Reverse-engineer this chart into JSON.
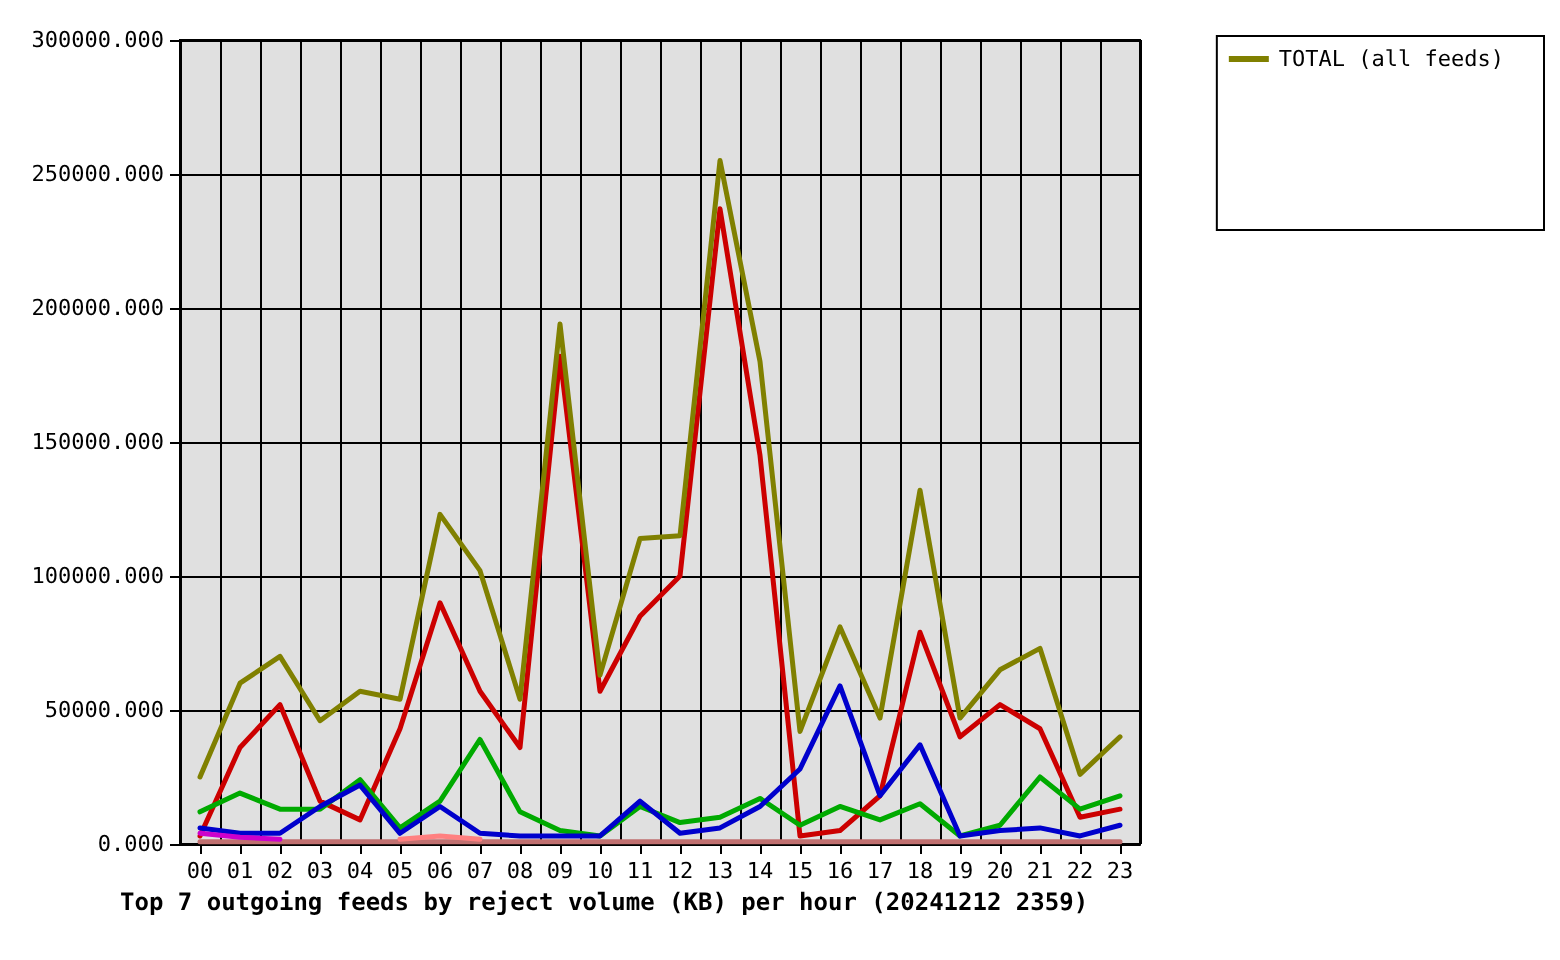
{
  "chart_data": {
    "type": "line",
    "title": "Top 7 outgoing feeds by reject volume (KB) per hour (20241212 2359)",
    "categories": [
      "00",
      "01",
      "02",
      "03",
      "04",
      "05",
      "06",
      "07",
      "08",
      "09",
      "10",
      "11",
      "12",
      "13",
      "14",
      "15",
      "16",
      "17",
      "18",
      "19",
      "20",
      "21",
      "22",
      "23"
    ],
    "series": [
      {
        "color": "#c07070",
        "values": [
          800,
          800,
          800,
          800,
          800,
          800,
          800,
          800,
          800,
          800,
          800,
          800,
          800,
          800,
          800,
          800,
          800,
          800,
          800,
          800,
          800,
          800,
          800,
          800
        ]
      },
      {
        "color": "#cc0000",
        "values": [
          3000,
          36000,
          52000,
          16000,
          9000,
          43000,
          90000,
          57000,
          36000,
          182000,
          57000,
          85000,
          100000,
          237000,
          145000,
          3000,
          5000,
          18000,
          79000,
          40000,
          52000,
          43000,
          10000,
          13000
        ]
      },
      {
        "color": "#00aa00",
        "values": [
          12000,
          19000,
          13000,
          13000,
          24000,
          6000,
          16000,
          39000,
          12000,
          5000,
          3000,
          14000,
          8000,
          10000,
          17000,
          7000,
          14000,
          9000,
          15000,
          3000,
          7000,
          25000,
          13000,
          18000
        ]
      },
      {
        "color": "#0000cc",
        "values": [
          6000,
          4000,
          4000,
          14000,
          22000,
          4000,
          14000,
          4000,
          3000,
          3000,
          3000,
          16000,
          4000,
          6000,
          14000,
          28000,
          59000,
          18000,
          37000,
          3000,
          5000,
          6000,
          3000,
          7000
        ]
      },
      {
        "color": "#cc00cc",
        "values": [
          4000,
          2500,
          1800,
          null,
          null,
          null,
          null,
          null,
          null,
          null,
          null,
          null,
          null,
          null,
          null,
          null,
          null,
          null,
          null,
          null,
          null,
          null,
          null,
          null
        ]
      },
      {
        "color": "#ff8080",
        "values": [
          null,
          null,
          null,
          null,
          null,
          1800,
          3000,
          1800,
          null,
          null,
          null,
          null,
          null,
          null,
          null,
          null,
          null,
          null,
          null,
          null,
          null,
          null,
          null,
          null
        ]
      },
      {
        "name": "TOTAL (all feeds)",
        "color": "#808000",
        "values": [
          25000,
          60000,
          70000,
          46000,
          57000,
          54000,
          123000,
          102000,
          54000,
          194000,
          63000,
          114000,
          115000,
          255000,
          180000,
          42000,
          81000,
          47000,
          132000,
          47000,
          65000,
          73000,
          26000,
          40000
        ]
      }
    ],
    "ylim": [
      0,
      300000
    ],
    "yticks": [
      {
        "value": 0,
        "label": "0.000"
      },
      {
        "value": 50000,
        "label": "50000.000"
      },
      {
        "value": 100000,
        "label": "100000.000"
      },
      {
        "value": 150000,
        "label": "150000.000"
      },
      {
        "value": 200000,
        "label": "200000.000"
      },
      {
        "value": 250000,
        "label": "250000.000"
      },
      {
        "value": 300000,
        "label": "300000.000"
      }
    ],
    "grid": true,
    "legend": "top right",
    "marker": "none",
    "line_style": "solid"
  }
}
